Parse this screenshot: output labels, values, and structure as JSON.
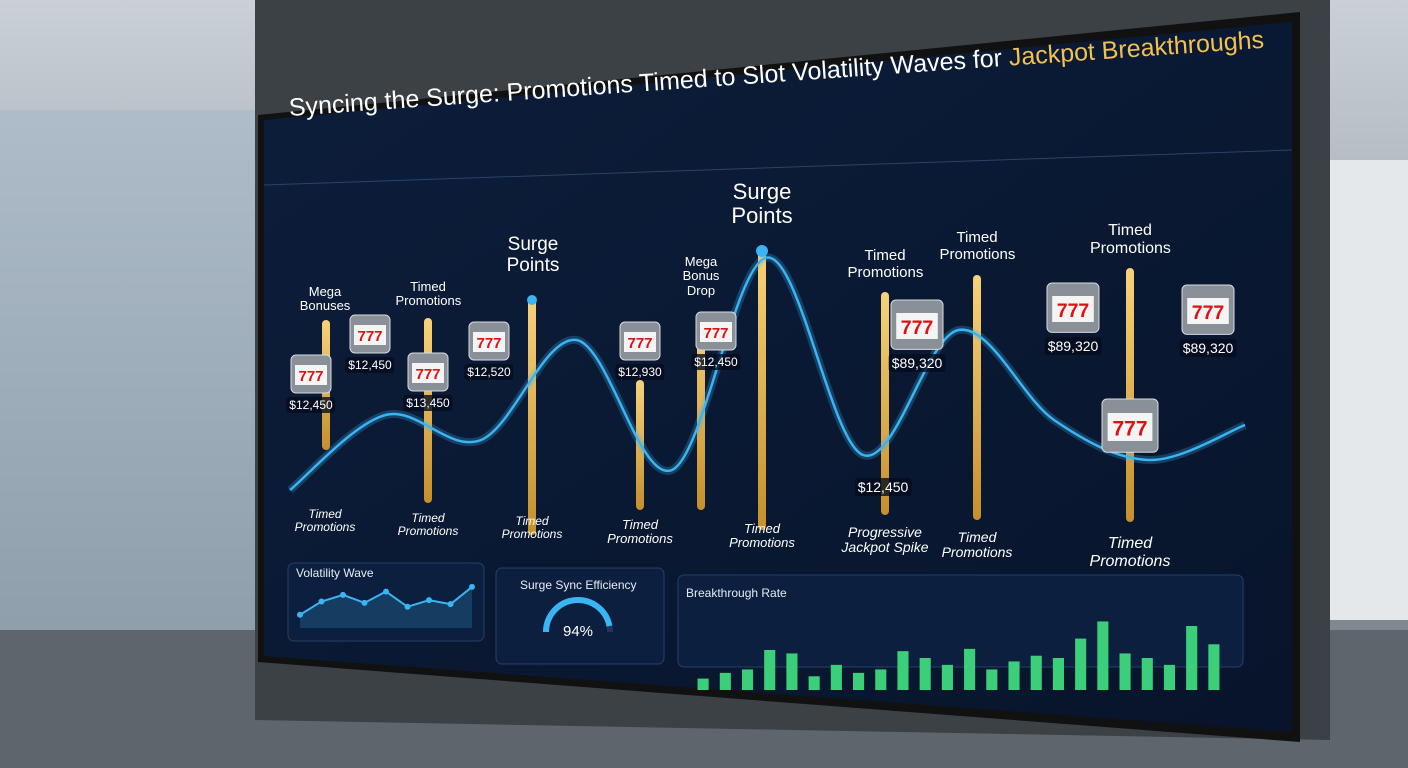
{
  "chart_data": [
    {
      "type": "wave",
      "title": "Syncing the Surge: Promotions Timed to Slot Volatility Waves for",
      "title_highlight": "Jackpot Breakthroughs",
      "values": [
        4,
        34,
        24,
        64,
        12,
        97,
        18,
        68,
        32,
        16,
        30
      ],
      "ylim": [
        0,
        100
      ],
      "color": "#3ab4f2",
      "top_labels": [
        "Mega Bonuses",
        "Timed Promotions",
        "Surge Points",
        "Mega Bonus Drop",
        "Surge Points",
        "Timed Promotions",
        "Timed Promotions",
        "Timed Promotions"
      ],
      "bottom_labels": [
        "Timed Promotions",
        "Timed Promotions",
        "Timed Promotions",
        "Timed Promotions",
        "Timed Promotions",
        "Progressive Jackpot Spike",
        "Timed Promotions",
        "Timed Promotions"
      ],
      "prize_labels": [
        "$12,450",
        "$12,450",
        "$13,450",
        "$12,520",
        "$12,930",
        "$12,450",
        "$89,320",
        "$89,320",
        "$89,320",
        "$12,450"
      ]
    },
    {
      "type": "line",
      "title": "Volatility Wave",
      "values": [
        20,
        40,
        50,
        38,
        55,
        32,
        42,
        36,
        62
      ],
      "ylim": [
        0,
        80
      ],
      "color": "#3ab4f2"
    },
    {
      "type": "gauge",
      "title": "Surge Sync Efficiency",
      "values": [
        94
      ],
      "value_labels": [
        "94%"
      ],
      "ylim": [
        0,
        100
      ],
      "color": "#3ab4f2"
    },
    {
      "type": "bar",
      "title": "Breakthrough Rate",
      "values": [
        10,
        15,
        18,
        35,
        32,
        12,
        22,
        15,
        18,
        34,
        28,
        22,
        36,
        18,
        25,
        30,
        28,
        45,
        60,
        32,
        28,
        22,
        56,
        40
      ],
      "ylim": [
        0,
        70
      ],
      "color": "#3ccf7a"
    }
  ]
}
